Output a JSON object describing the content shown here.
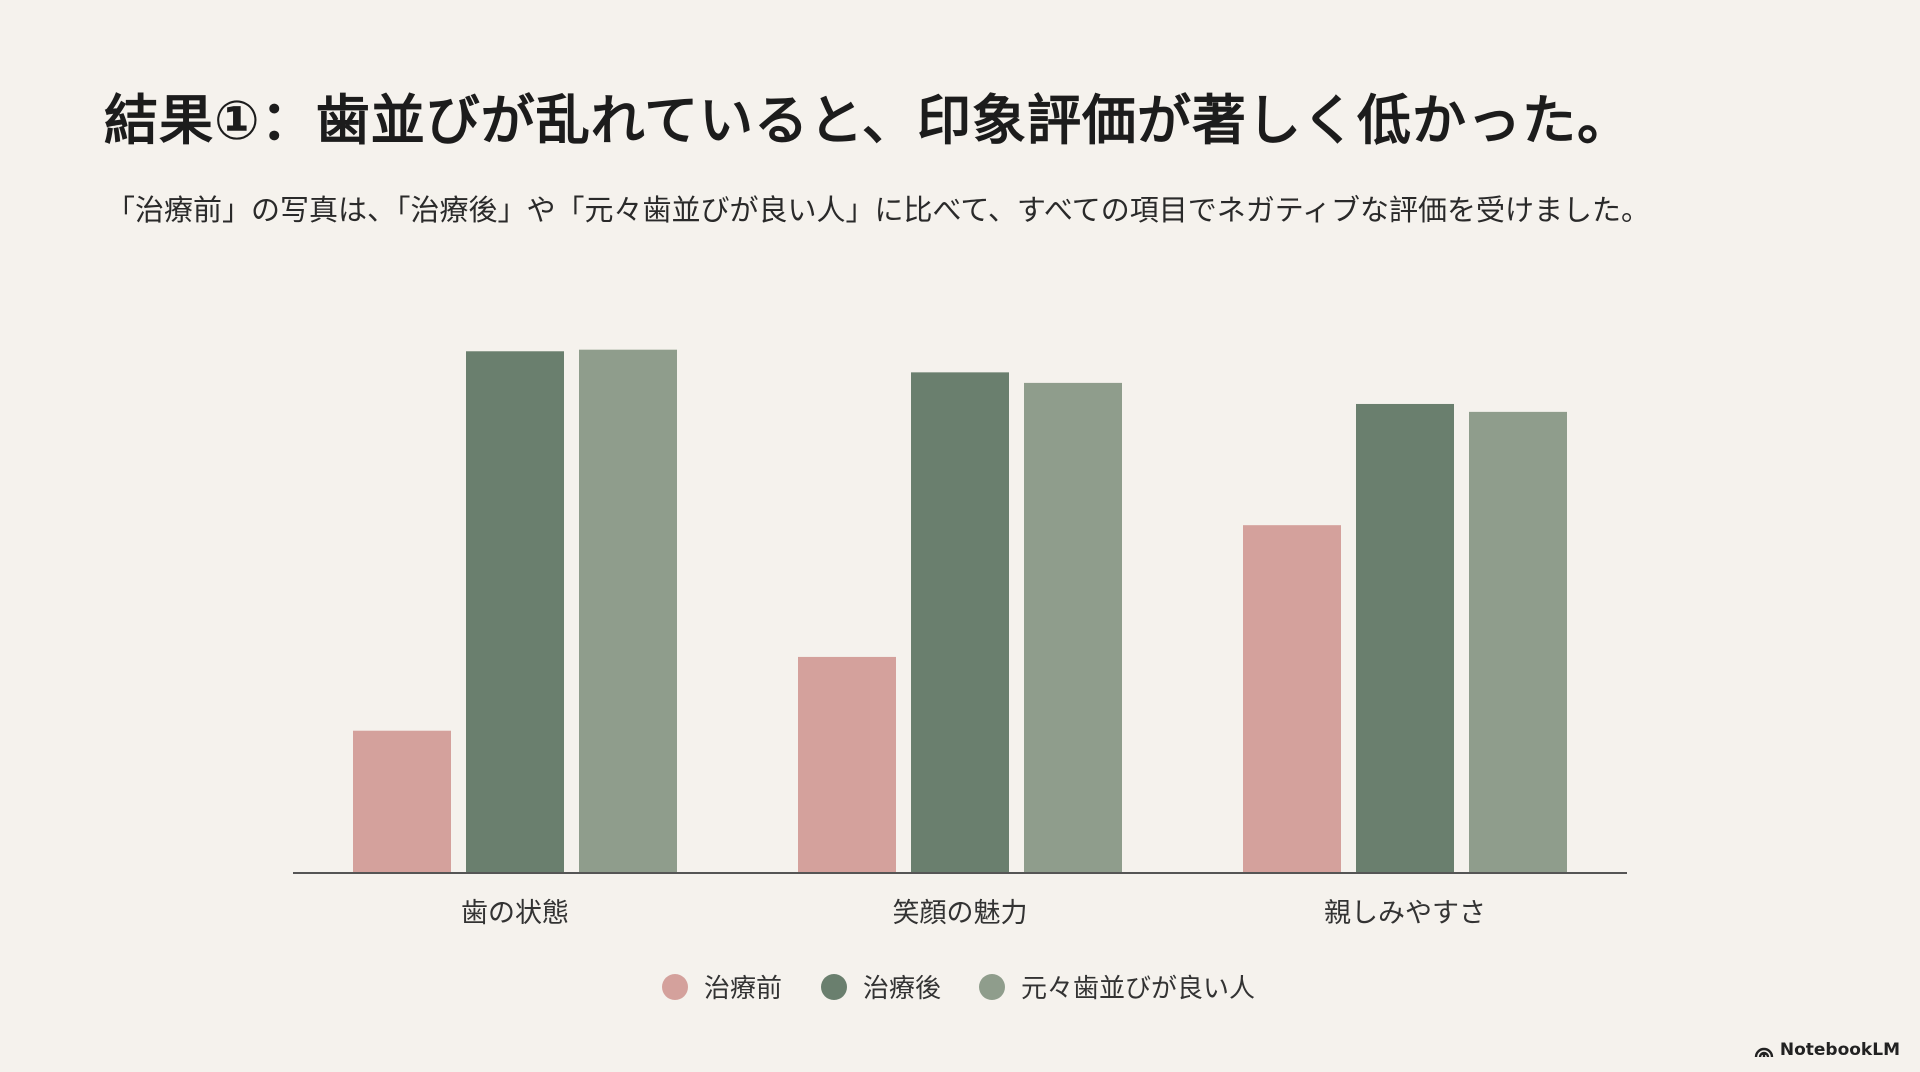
{
  "slide": {
    "title": "結果①：歯並びが乱れていると、印象評価が著しく低かった。",
    "subtitle": "「治療前」の写真は、「治療後」や「元々歯並びが良い人」に比べて、すべての項目でネガティブな評価を受けました。",
    "logo_text": "NotebookLM"
  },
  "chart_data": {
    "type": "bar",
    "title": "",
    "xlabel": "",
    "ylabel": "",
    "ylim": [
      0,
      100
    ],
    "grid": false,
    "legend_position": "bottom-center",
    "categories": [
      "歯の状態",
      "笑顔の魅力",
      "親しみやすさ"
    ],
    "series": [
      {
        "name": "治療前",
        "color": "#d4a19c",
        "values": [
          27,
          41,
          66
        ]
      },
      {
        "name": "治療後",
        "color": "#6a7f6e",
        "values": [
          99,
          95,
          89
        ]
      },
      {
        "name": "元々歯並びが良い人",
        "color": "#8f9d8c",
        "values": [
          99.3,
          93,
          87.5
        ]
      }
    ]
  }
}
